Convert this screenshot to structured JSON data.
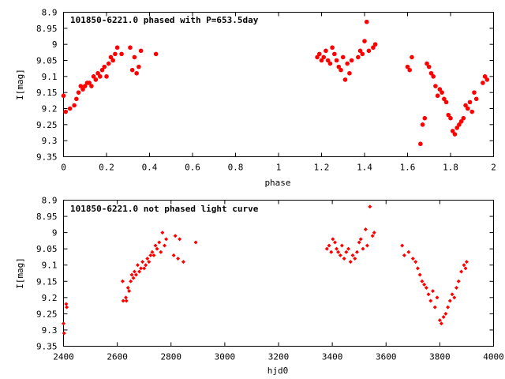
{
  "chart_data": [
    {
      "type": "scatter",
      "title": "101850-6221.0 phased with P=653.5day",
      "xlabel": "phase",
      "ylabel": "I[mag]",
      "xlim": [
        0,
        2
      ],
      "ylim": [
        9.35,
        8.9
      ],
      "y_inverted": true,
      "xticks": [
        "0",
        "0.2",
        "0.4",
        "0.6",
        "0.8",
        "1",
        "1.2",
        "1.4",
        "1.6",
        "1.8",
        "2"
      ],
      "yticks": [
        "8.9",
        "8.95",
        "9",
        "9.05",
        "9.1",
        "9.15",
        "9.2",
        "9.25",
        "9.3",
        "9.35"
      ],
      "marker": "filled-circle",
      "color": "#ff0000",
      "grid": false,
      "legend": "none",
      "x": [
        0.0,
        0.01,
        0.03,
        0.05,
        0.06,
        0.07,
        0.08,
        0.09,
        0.1,
        0.11,
        0.12,
        0.13,
        0.14,
        0.15,
        0.16,
        0.17,
        0.18,
        0.19,
        0.2,
        0.21,
        0.22,
        0.23,
        0.24,
        0.25,
        0.27,
        0.31,
        0.32,
        0.33,
        0.34,
        0.35,
        0.36,
        0.43,
        1.18,
        1.19,
        1.2,
        1.21,
        1.22,
        1.23,
        1.24,
        1.25,
        1.26,
        1.27,
        1.28,
        1.29,
        1.3,
        1.31,
        1.32,
        1.33,
        1.34,
        1.37,
        1.38,
        1.39,
        1.4,
        1.41,
        1.42,
        1.44,
        1.45,
        1.6,
        1.61,
        1.62,
        1.66,
        1.67,
        1.68,
        1.69,
        1.7,
        1.71,
        1.72,
        1.73,
        1.74,
        1.75,
        1.76,
        1.77,
        1.78,
        1.79,
        1.8,
        1.81,
        1.82,
        1.83,
        1.84,
        1.85,
        1.86,
        1.87,
        1.88,
        1.89,
        1.9,
        1.91,
        1.92,
        1.95,
        1.96,
        1.97
      ],
      "y": [
        9.16,
        9.21,
        9.2,
        9.19,
        9.17,
        9.15,
        9.13,
        9.14,
        9.13,
        9.12,
        9.12,
        9.13,
        9.1,
        9.11,
        9.09,
        9.1,
        9.08,
        9.07,
        9.1,
        9.06,
        9.04,
        9.05,
        9.03,
        9.01,
        9.03,
        9.01,
        9.08,
        9.04,
        9.09,
        9.07,
        9.02,
        9.03,
        9.04,
        9.03,
        9.05,
        9.04,
        9.02,
        9.05,
        9.06,
        9.01,
        9.03,
        9.05,
        9.07,
        9.08,
        9.04,
        9.11,
        9.06,
        9.09,
        9.05,
        9.04,
        9.02,
        9.03,
        8.99,
        8.93,
        9.02,
        9.01,
        9.0,
        9.07,
        9.08,
        9.04,
        9.31,
        9.25,
        9.23,
        9.06,
        9.07,
        9.09,
        9.1,
        9.13,
        9.16,
        9.14,
        9.15,
        9.17,
        9.18,
        9.22,
        9.23,
        9.27,
        9.28,
        9.26,
        9.25,
        9.24,
        9.23,
        9.19,
        9.2,
        9.18,
        9.21,
        9.15,
        9.17,
        9.12,
        9.1,
        9.11
      ]
    },
    {
      "type": "scatter",
      "title": "101850-6221.0 not phased light curve",
      "xlabel": "hjd0",
      "ylabel": "I[mag]",
      "xlim": [
        2400,
        4000
      ],
      "ylim": [
        9.35,
        8.9
      ],
      "y_inverted": true,
      "xticks": [
        "2400",
        "2600",
        "2800",
        "3000",
        "3200",
        "3400",
        "3600",
        "3800",
        "4000"
      ],
      "yticks": [
        "8.9",
        "8.95",
        "9",
        "9.05",
        "9.1",
        "9.15",
        "9.2",
        "9.25",
        "9.3",
        "9.35"
      ],
      "marker": "diamond",
      "color": "#ff0000",
      "grid": false,
      "legend": "none",
      "x": [
        2400,
        2402,
        2410,
        2412,
        2620,
        2622,
        2632,
        2634,
        2640,
        2644,
        2650,
        2654,
        2660,
        2664,
        2670,
        2676,
        2682,
        2688,
        2694,
        2700,
        2706,
        2712,
        2718,
        2724,
        2730,
        2736,
        2742,
        2748,
        2756,
        2762,
        2768,
        2776,
        2782,
        2810,
        2816,
        2826,
        2832,
        2846,
        2892,
        3380,
        3388,
        3396,
        3402,
        3410,
        3416,
        3422,
        3430,
        3436,
        3444,
        3452,
        3460,
        3468,
        3476,
        3484,
        3492,
        3500,
        3506,
        3514,
        3524,
        3530,
        3540,
        3550,
        3556,
        3660,
        3668,
        3684,
        3700,
        3710,
        3718,
        3726,
        3734,
        3742,
        3750,
        3758,
        3766,
        3774,
        3782,
        3790,
        3800,
        3806,
        3814,
        3822,
        3830,
        3838,
        3846,
        3854,
        3862,
        3870,
        3880,
        3890,
        3896,
        3900
      ],
      "y": [
        9.28,
        9.31,
        9.22,
        9.23,
        9.15,
        9.21,
        9.2,
        9.21,
        9.17,
        9.18,
        9.15,
        9.13,
        9.14,
        9.12,
        9.13,
        9.1,
        9.12,
        9.11,
        9.09,
        9.11,
        9.1,
        9.08,
        9.09,
        9.07,
        9.06,
        9.07,
        9.04,
        9.05,
        9.03,
        9.06,
        9.0,
        9.04,
        9.02,
        9.07,
        9.01,
        9.08,
        9.02,
        9.09,
        9.03,
        9.05,
        9.04,
        9.06,
        9.02,
        9.03,
        9.05,
        9.06,
        9.07,
        9.04,
        9.08,
        9.06,
        9.05,
        9.09,
        9.07,
        9.08,
        9.06,
        9.03,
        9.02,
        9.05,
        8.99,
        9.04,
        8.92,
        9.01,
        9.0,
        9.04,
        9.07,
        9.06,
        9.08,
        9.09,
        9.11,
        9.13,
        9.15,
        9.16,
        9.17,
        9.19,
        9.21,
        9.18,
        9.23,
        9.2,
        9.27,
        9.28,
        9.26,
        9.25,
        9.23,
        9.21,
        9.19,
        9.2,
        9.17,
        9.15,
        9.12,
        9.1,
        9.11,
        9.09
      ]
    }
  ]
}
